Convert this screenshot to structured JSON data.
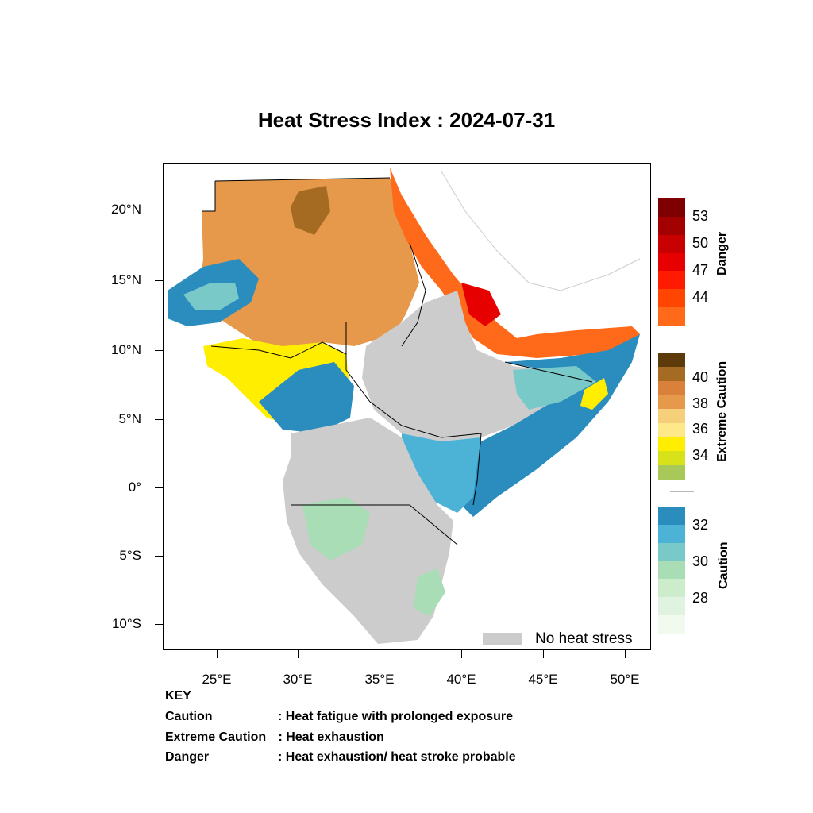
{
  "title": "Heat Stress Index : 2024-07-31",
  "axes": {
    "y_labels": [
      "20°N",
      "15°N",
      "10°N",
      "5°N",
      "0°",
      "5°S",
      "10°S"
    ],
    "x_labels": [
      "25°E",
      "30°E",
      "35°E",
      "40°E",
      "45°E",
      "50°E"
    ]
  },
  "colorbars": {
    "danger": {
      "title": "Danger",
      "labels": [
        "53",
        "50",
        "47",
        "44"
      ],
      "colors": [
        "#7f0000",
        "#a30000",
        "#c80000",
        "#e60000",
        "#ff1a00",
        "#ff4500",
        "#ff6a1a"
      ]
    },
    "extreme": {
      "title": "Extreme Caution",
      "labels": [
        "40",
        "38",
        "36",
        "34"
      ],
      "colors": [
        "#5c3a0a",
        "#a66b22",
        "#d9803a",
        "#e6994a",
        "#f5cf7a",
        "#fde88a",
        "#ffee00",
        "#d8e21a",
        "#a8c85a"
      ]
    },
    "caution": {
      "title": "Caution",
      "labels": [
        "32",
        "30",
        "28"
      ],
      "colors": [
        "#2b8cbe",
        "#4db3d6",
        "#7ac9c9",
        "#a8ddb5",
        "#cceccc",
        "#e0f3e0",
        "#f2faf0"
      ]
    }
  },
  "legend": {
    "no_heat_stress": "No heat stress",
    "no_heat_color": "#cccccc"
  },
  "key": {
    "heading": "KEY",
    "rows": [
      {
        "term": "Caution",
        "desc": ": Heat fatigue with prolonged exposure"
      },
      {
        "term": "Extreme Caution",
        "desc": " : Heat exhaustion"
      },
      {
        "term": "Danger",
        "desc": ": Heat exhaustion/ heat stroke probable"
      }
    ]
  }
}
